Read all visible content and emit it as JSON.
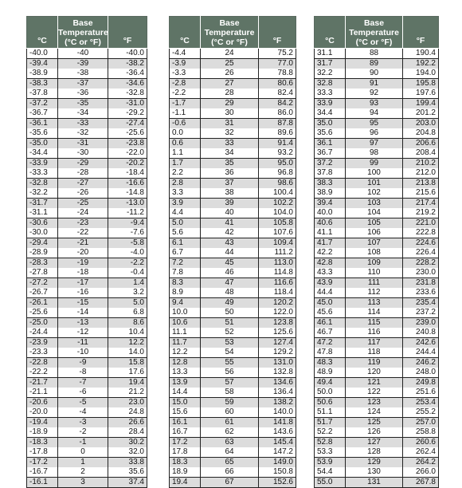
{
  "header": {
    "celsius": "°C",
    "base_line1": "Base",
    "base_line2": "Temperature",
    "base_line3": "(°C or °F)",
    "fahrenheit": "°F"
  },
  "tables": [
    {
      "rows": [
        [
          "-40.0",
          "-40",
          "-40.0"
        ],
        [
          "-39.4",
          "-39",
          "-38.2"
        ],
        [
          "-38.9",
          "-38",
          "-36.4"
        ],
        [
          "-38.3",
          "-37",
          "-34.6"
        ],
        [
          "-37.8",
          "-36",
          "-32.8"
        ],
        [
          "-37.2",
          "-35",
          "-31.0"
        ],
        [
          "-36.7",
          "-34",
          "-29.2"
        ],
        [
          "-36.1",
          "-33",
          "-27.4"
        ],
        [
          "-35.6",
          "-32",
          "-25.6"
        ],
        [
          "-35.0",
          "-31",
          "-23.8"
        ],
        [
          "-34.4",
          "-30",
          "-22.0"
        ],
        [
          "-33.9",
          "-29",
          "-20.2"
        ],
        [
          "-33.3",
          "-28",
          "-18.4"
        ],
        [
          "-32.8",
          "-27",
          "-16.6"
        ],
        [
          "-32.2",
          "-26",
          "-14.8"
        ],
        [
          "-31.7",
          "-25",
          "-13.0"
        ],
        [
          "-31.1",
          "-24",
          "-11.2"
        ],
        [
          "-30.6",
          "-23",
          "-9.4"
        ],
        [
          "-30.0",
          "-22",
          "-7.6"
        ],
        [
          "-29.4",
          "-21",
          "-5.8"
        ],
        [
          "-28.9",
          "-20",
          "-4.0"
        ],
        [
          "-28.3",
          "-19",
          "-2.2"
        ],
        [
          "-27.8",
          "-18",
          "-0.4"
        ],
        [
          "-27.2",
          "-17",
          "1.4"
        ],
        [
          "-26.7",
          "-16",
          "3.2"
        ],
        [
          "-26.1",
          "-15",
          "5.0"
        ],
        [
          "-25.6",
          "-14",
          "6.8"
        ],
        [
          "-25.0",
          "-13",
          "8.6"
        ],
        [
          "-24.4",
          "-12",
          "10.4"
        ],
        [
          "-23.9",
          "-11",
          "12.2"
        ],
        [
          "-23.3",
          "-10",
          "14.0"
        ],
        [
          "-22.8",
          "-9",
          "15.8"
        ],
        [
          "-22.2",
          "-8",
          "17.6"
        ],
        [
          "-21.7",
          "-7",
          "19.4"
        ],
        [
          "-21.1",
          "-6",
          "21.2"
        ],
        [
          "-20.6",
          "-5",
          "23.0"
        ],
        [
          "-20.0",
          "-4",
          "24.8"
        ],
        [
          "-19.4",
          "-3",
          "26.6"
        ],
        [
          "-18.9",
          "-2",
          "28.4"
        ],
        [
          "-18.3",
          "-1",
          "30.2"
        ],
        [
          "-17.8",
          "0",
          "32.0"
        ],
        [
          "-17.2",
          "1",
          "33.8"
        ],
        [
          "-16.7",
          "2",
          "35.6"
        ],
        [
          "-16.1",
          "3",
          "37.4"
        ]
      ]
    },
    {
      "rows": [
        [
          "-4.4",
          "24",
          "75.2"
        ],
        [
          "-3.9",
          "25",
          "77.0"
        ],
        [
          "-3.3",
          "26",
          "78.8"
        ],
        [
          "-2.8",
          "27",
          "80.6"
        ],
        [
          "-2.2",
          "28",
          "82.4"
        ],
        [
          "-1.7",
          "29",
          "84.2"
        ],
        [
          "-1.1",
          "30",
          "86.0"
        ],
        [
          "-0.6",
          "31",
          "87.8"
        ],
        [
          "0.0",
          "32",
          "89.6"
        ],
        [
          "0.6",
          "33",
          "91.4"
        ],
        [
          "1.1",
          "34",
          "93.2"
        ],
        [
          "1.7",
          "35",
          "95.0"
        ],
        [
          "2.2",
          "36",
          "96.8"
        ],
        [
          "2.8",
          "37",
          "98.6"
        ],
        [
          "3.3",
          "38",
          "100.4"
        ],
        [
          "3.9",
          "39",
          "102.2"
        ],
        [
          "4.4",
          "40",
          "104.0"
        ],
        [
          "5.0",
          "41",
          "105.8"
        ],
        [
          "5.6",
          "42",
          "107.6"
        ],
        [
          "6.1",
          "43",
          "109.4"
        ],
        [
          "6.7",
          "44",
          "111.2"
        ],
        [
          "7.2",
          "45",
          "113.0"
        ],
        [
          "7.8",
          "46",
          "114.8"
        ],
        [
          "8.3",
          "47",
          "116.6"
        ],
        [
          "8.9",
          "48",
          "118.4"
        ],
        [
          "9.4",
          "49",
          "120.2"
        ],
        [
          "10.0",
          "50",
          "122.0"
        ],
        [
          "10.6",
          "51",
          "123.8"
        ],
        [
          "11.1",
          "52",
          "125.6"
        ],
        [
          "11.7",
          "53",
          "127.4"
        ],
        [
          "12.2",
          "54",
          "129.2"
        ],
        [
          "12.8",
          "55",
          "131.0"
        ],
        [
          "13.3",
          "56",
          "132.8"
        ],
        [
          "13.9",
          "57",
          "134.6"
        ],
        [
          "14.4",
          "58",
          "136.4"
        ],
        [
          "15.0",
          "59",
          "138.2"
        ],
        [
          "15.6",
          "60",
          "140.0"
        ],
        [
          "16.1",
          "61",
          "141.8"
        ],
        [
          "16.7",
          "62",
          "143.6"
        ],
        [
          "17.2",
          "63",
          "145.4"
        ],
        [
          "17.8",
          "64",
          "147.2"
        ],
        [
          "18.3",
          "65",
          "149.0"
        ],
        [
          "18.9",
          "66",
          "150.8"
        ],
        [
          "19.4",
          "67",
          "152.6"
        ]
      ]
    },
    {
      "rows": [
        [
          "31.1",
          "88",
          "190.4"
        ],
        [
          "31.7",
          "89",
          "192.2"
        ],
        [
          "32.2",
          "90",
          "194.0"
        ],
        [
          "32.8",
          "91",
          "195.8"
        ],
        [
          "33.3",
          "92",
          "197.6"
        ],
        [
          "33.9",
          "93",
          "199.4"
        ],
        [
          "34.4",
          "94",
          "201.2"
        ],
        [
          "35.0",
          "95",
          "203.0"
        ],
        [
          "35.6",
          "96",
          "204.8"
        ],
        [
          "36.1",
          "97",
          "206.6"
        ],
        [
          "36.7",
          "98",
          "208.4"
        ],
        [
          "37.2",
          "99",
          "210.2"
        ],
        [
          "37.8",
          "100",
          "212.0"
        ],
        [
          "38.3",
          "101",
          "213.8"
        ],
        [
          "38.9",
          "102",
          "215.6"
        ],
        [
          "39.4",
          "103",
          "217.4"
        ],
        [
          "40.0",
          "104",
          "219.2"
        ],
        [
          "40.6",
          "105",
          "221.0"
        ],
        [
          "41.1",
          "106",
          "222.8"
        ],
        [
          "41.7",
          "107",
          "224.6"
        ],
        [
          "42.2",
          "108",
          "226.4"
        ],
        [
          "42.8",
          "109",
          "228.2"
        ],
        [
          "43.3",
          "110",
          "230.0"
        ],
        [
          "43.9",
          "111",
          "231.8"
        ],
        [
          "44.4",
          "112",
          "233.6"
        ],
        [
          "45.0",
          "113",
          "235.4"
        ],
        [
          "45.6",
          "114",
          "237.2"
        ],
        [
          "46.1",
          "115",
          "239.0"
        ],
        [
          "46.7",
          "116",
          "240.8"
        ],
        [
          "47.2",
          "117",
          "242.6"
        ],
        [
          "47.8",
          "118",
          "244.4"
        ],
        [
          "48.3",
          "119",
          "246.2"
        ],
        [
          "48.9",
          "120",
          "248.0"
        ],
        [
          "49.4",
          "121",
          "249.8"
        ],
        [
          "50.0",
          "122",
          "251.6"
        ],
        [
          "50.6",
          "123",
          "253.4"
        ],
        [
          "51.1",
          "124",
          "255.2"
        ],
        [
          "51.7",
          "125",
          "257.0"
        ],
        [
          "52.2",
          "126",
          "258.8"
        ],
        [
          "52.8",
          "127",
          "260.6"
        ],
        [
          "53.3",
          "128",
          "262.4"
        ],
        [
          "53.9",
          "129",
          "264.2"
        ],
        [
          "54.4",
          "130",
          "266.0"
        ],
        [
          "55.0",
          "131",
          "267.8"
        ]
      ]
    }
  ]
}
